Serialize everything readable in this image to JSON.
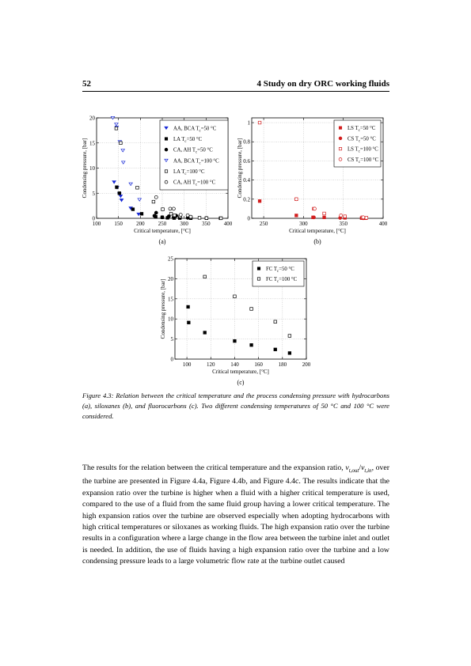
{
  "header": {
    "page_number": "52",
    "chapter_title": "4 Study on dry ORC working fluids"
  },
  "figures": [
    {
      "id": "a",
      "panel_label": "(a)",
      "chart_data": {
        "type": "scatter",
        "xlabel": "Critical temperature, [°C]",
        "ylabel": "Condensing pressure, [bar]",
        "xlim": [
          100,
          400
        ],
        "ylim": [
          0,
          20
        ],
        "xticks": [
          100,
          150,
          200,
          250,
          300,
          350,
          400
        ],
        "yticks": [
          0,
          5,
          10,
          15,
          20
        ],
        "grid": true,
        "legend_position": "top-right",
        "series": [
          {
            "name": "AA, BCA T",
            "sub": "c",
            "suffix": "=50 °C",
            "marker": "triangle-down",
            "filled": true,
            "color": "#1a2bd6",
            "points": [
              [
                140,
                7.2
              ],
              [
                147,
                6.1
              ],
              [
                152,
                4.8
              ],
              [
                155,
                4.4
              ],
              [
                157,
                3.6
              ],
              [
                178,
                2.0
              ],
              [
                196,
                0.8
              ]
            ]
          },
          {
            "name": "LA T",
            "sub": "c",
            "suffix": "=50 °C",
            "marker": "square",
            "filled": true,
            "color": "#000000",
            "points": [
              [
                146,
                6.2
              ],
              [
                152,
                5.0
              ],
              [
                183,
                1.8
              ],
              [
                203,
                0.9
              ],
              [
                235,
                0.3
              ],
              [
                250,
                0.2
              ],
              [
                262,
                0.1
              ],
              [
                277,
                0.05
              ],
              [
                290,
                0.05
              ],
              [
                315,
                0.02
              ],
              [
                351,
                0.02
              ],
              [
                383,
                0.01
              ]
            ]
          },
          {
            "name": "CA, AH T",
            "sub": "c",
            "suffix": "=50 °C",
            "marker": "circle",
            "filled": true,
            "color": "#000000",
            "points": [
              [
                232,
                0.5
              ],
              [
                236,
                1.1
              ],
              [
                250,
                0.2
              ],
              [
                265,
                0.4
              ],
              [
                276,
                0.2
              ],
              [
                282,
                0.5
              ],
              [
                308,
                0.1
              ],
              [
                315,
                0.05
              ]
            ]
          },
          {
            "name": "AA, BCA T",
            "sub": "c",
            "suffix": "=100 °C",
            "marker": "triangle-down",
            "filled": false,
            "color": "#1a2bd6",
            "points": [
              [
                137,
                20.0
              ],
              [
                145,
                18.7
              ],
              [
                146,
                18.1
              ],
              [
                153,
                15.2
              ],
              [
                160,
                13.5
              ],
              [
                161,
                11.1
              ],
              [
                178,
                6.8
              ],
              [
                198,
                3.7
              ]
            ]
          },
          {
            "name": "LA T",
            "sub": "c",
            "suffix": "=100 °C",
            "marker": "square",
            "filled": false,
            "color": "#000000",
            "points": [
              [
                145,
                17.9
              ],
              [
                155,
                15.0
              ],
              [
                193,
                6.1
              ],
              [
                230,
                3.3
              ],
              [
                251,
                1.8
              ],
              [
                270,
                0.9
              ],
              [
                278,
                0.6
              ],
              [
                291,
                0.4
              ],
              [
                315,
                0.2
              ],
              [
                335,
                0.1
              ],
              [
                351,
                0.05
              ],
              [
                384,
                0.02
              ]
            ]
          },
          {
            "name": "CA, AH T",
            "sub": "c",
            "suffix": "=100 °C",
            "marker": "circle",
            "filled": false,
            "color": "#000000",
            "points": [
              [
                236,
                4.2
              ],
              [
                268,
                1.9
              ],
              [
                276,
                1.9
              ],
              [
                292,
                0.7
              ],
              [
                308,
                0.6
              ],
              [
                315,
                0.3
              ]
            ]
          }
        ]
      }
    },
    {
      "id": "b",
      "panel_label": "(b)",
      "chart_data": {
        "type": "scatter",
        "xlabel": "Critical temperature, [°C]",
        "ylabel": "Condensing pressure, [bar]",
        "xlim": [
          235,
          400
        ],
        "ylim": [
          0,
          1.05
        ],
        "xticks": [
          250,
          300,
          350,
          400
        ],
        "yticks": [
          0,
          0.2,
          0.4,
          0.6,
          0.8,
          1
        ],
        "grid": true,
        "legend_position": "top-right",
        "series": [
          {
            "name": "LS T",
            "sub": "c",
            "suffix": "=50 °C",
            "marker": "square",
            "filled": true,
            "color": "#d21e1e",
            "points": [
              [
                245,
                0.18
              ],
              [
                291,
                0.03
              ],
              [
                312,
                0.01
              ],
              [
                326,
                0.01
              ],
              [
                352,
                0.005
              ],
              [
                373,
                0.002
              ],
              [
                378,
                0.001
              ]
            ]
          },
          {
            "name": "CS T",
            "sub": "c",
            "suffix": "=50 °C",
            "marker": "circle",
            "filled": true,
            "color": "#d21e1e",
            "points": [
              [
                313,
                0.01
              ],
              [
                346,
                0.004
              ],
              [
                375,
                0.001
              ]
            ]
          },
          {
            "name": "LS T",
            "sub": "c",
            "suffix": "=100 °C",
            "marker": "square",
            "filled": false,
            "color": "#d21e1e",
            "points": [
              [
                245,
                1.0
              ],
              [
                291,
                0.2
              ],
              [
                313,
                0.1
              ],
              [
                326,
                0.05
              ],
              [
                352,
                0.02
              ],
              [
                374,
                0.01
              ],
              [
                379,
                0.005
              ]
            ]
          },
          {
            "name": "CS T",
            "sub": "c",
            "suffix": "=100 °C",
            "marker": "circle",
            "filled": false,
            "color": "#d21e1e",
            "points": [
              [
                291,
                0.2
              ],
              [
                314,
                0.1
              ],
              [
                347,
                0.03
              ],
              [
                375,
                0.01
              ]
            ]
          }
        ]
      }
    },
    {
      "id": "c",
      "panel_label": "(c)",
      "chart_data": {
        "type": "scatter",
        "xlabel": "Critical temperature, [°C]",
        "ylabel": "Condensing pressure, [bar]",
        "xlim": [
          90,
          200
        ],
        "ylim": [
          0,
          25
        ],
        "xticks": [
          100,
          120,
          140,
          160,
          180,
          200
        ],
        "yticks": [
          0,
          5,
          10,
          15,
          20,
          25
        ],
        "grid": true,
        "legend_position": "top-right",
        "series": [
          {
            "name": "FC T",
            "sub": "c",
            "suffix": "=50 °C",
            "marker": "square",
            "filled": true,
            "color": "#000000",
            "points": [
              [
                101,
                13.0
              ],
              [
                101.5,
                9.1
              ],
              [
                115,
                6.6
              ],
              [
                140,
                4.5
              ],
              [
                154,
                3.5
              ],
              [
                174,
                2.4
              ],
              [
                186,
                1.5
              ]
            ]
          },
          {
            "name": "FC T",
            "sub": "c",
            "suffix": "=100 °C",
            "marker": "square",
            "filled": false,
            "color": "#000000",
            "points": [
              [
                115,
                20.5
              ],
              [
                140,
                15.6
              ],
              [
                154,
                12.5
              ],
              [
                174,
                9.3
              ],
              [
                186,
                5.8
              ]
            ]
          }
        ]
      }
    }
  ],
  "caption": "Figure 4.3: Relation between the critical temperature and the process condensing pressure with hydrocarbons (a), siloxanes (b), and fluorocarbons (c). Two different condensing temperatures of 50 °C and 100 °C were considered.",
  "body": {
    "s1": "The results for the relation between the critical temperature and the expansion ratio, ",
    "v1": "v",
    "v1_sub": "t,out",
    "slash": "/",
    "v2": "v",
    "v2_sub": "t,in",
    "s2": ", over the turbine are presented in Figure 4.4a, Figure 4.4b, and Figure 4.4c. The results indicate that the expansion ratio over the turbine is higher when a fluid with a higher critical temperature is used, compared to the use of a fluid from the same fluid group having a lower critical temperature. The high expansion ratios over the turbine are observed especially when adopting hydrocarbons with high critical temperatures or siloxanes as working fluids. The high expansion ratio over the turbine results in a configuration where a large change in the flow area between the turbine inlet and outlet is needed. In addition, the use of fluids having a high expansion ratio over the turbine and a low condensing pressure leads to a large volumetric flow rate at the turbine outlet caused"
  }
}
